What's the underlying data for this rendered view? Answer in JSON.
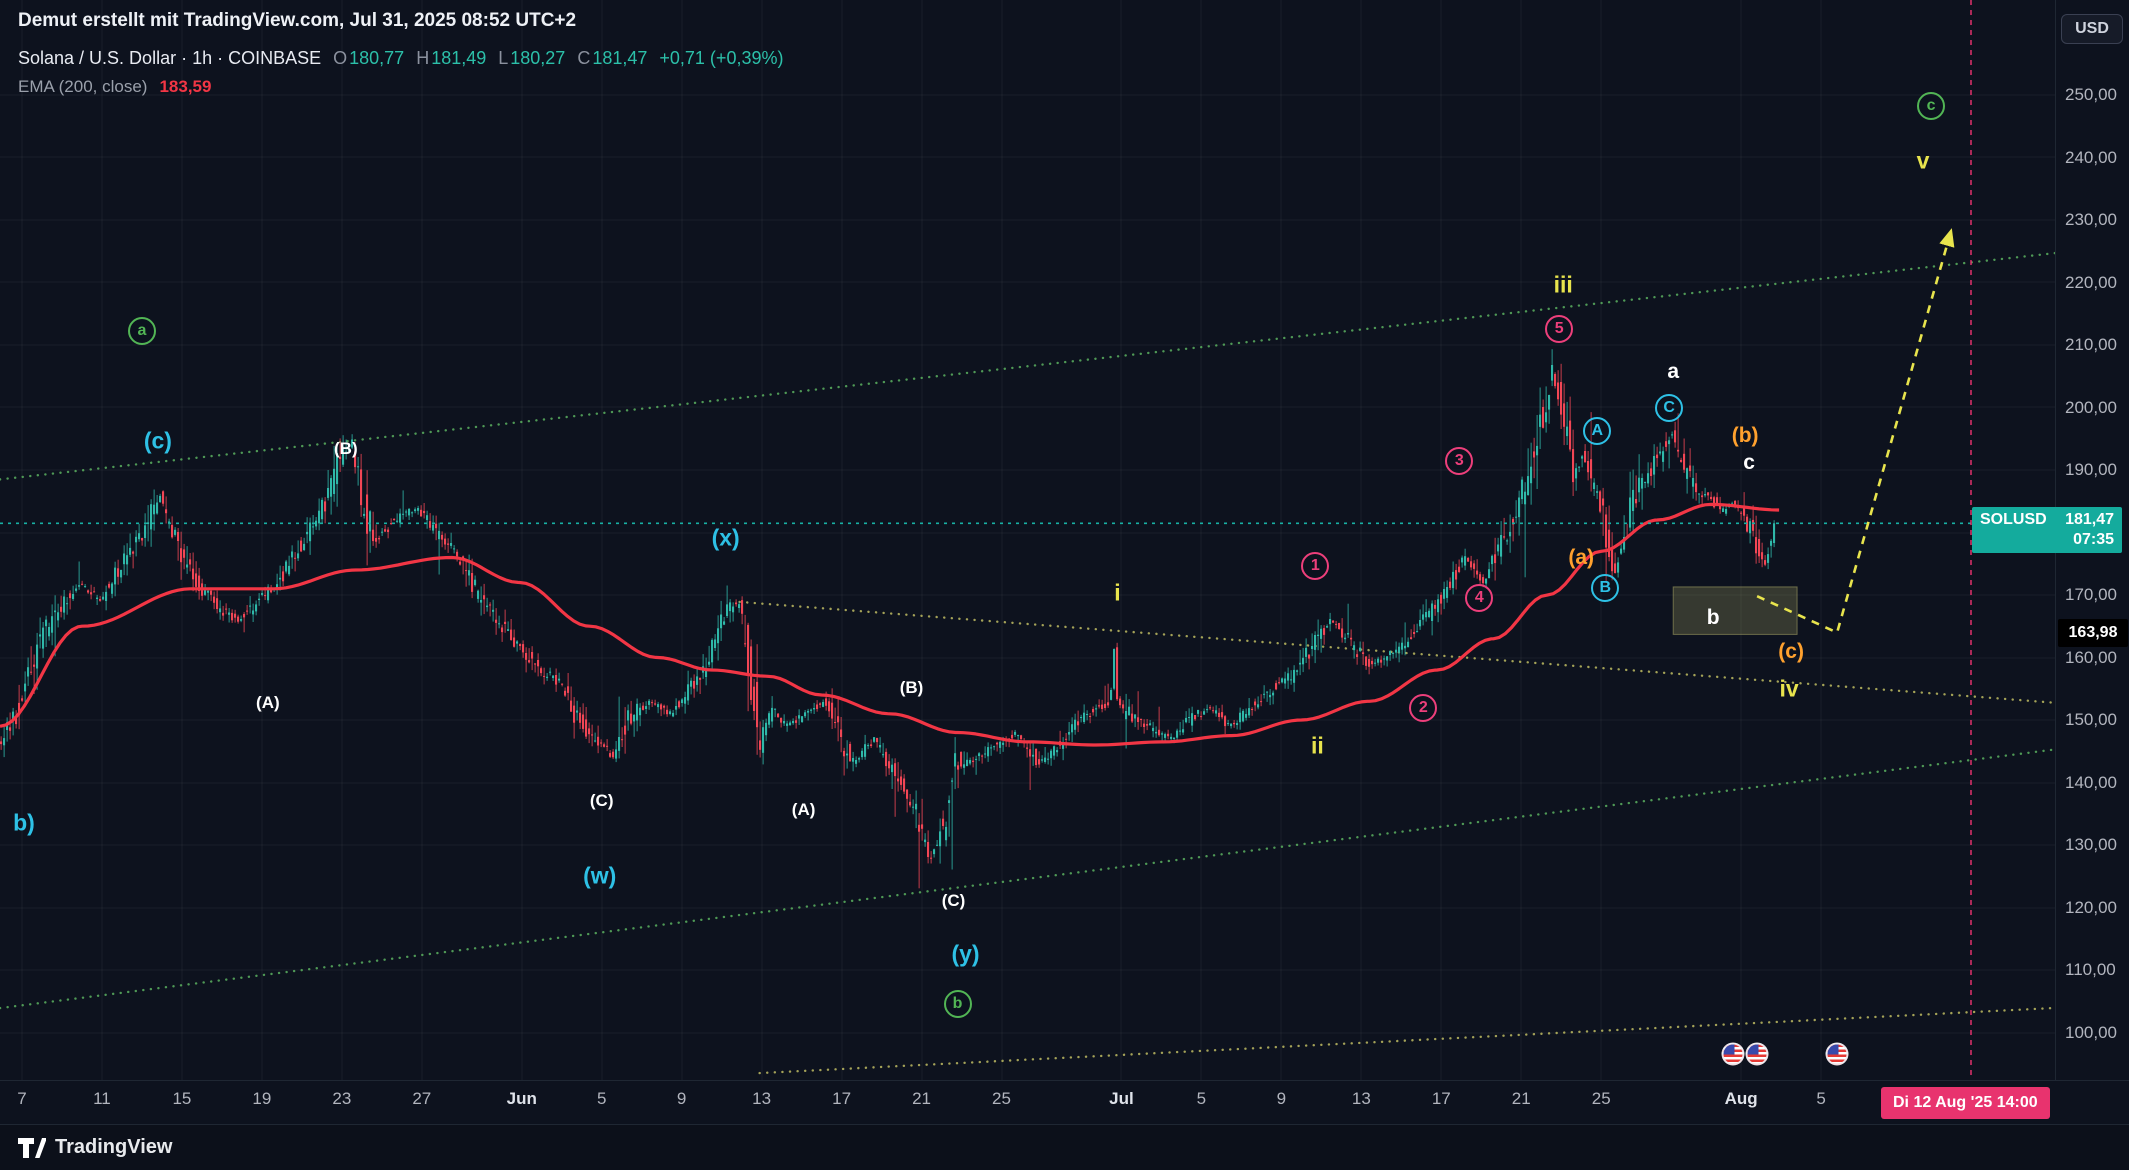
{
  "watermark": "Demut erstellt mit TradingView.com, Jul 31, 2025 08:52 UTC+2",
  "legend": {
    "title": "Solana / U.S. Dollar · 1h · COINBASE",
    "ohlc": [
      {
        "k": "O",
        "v": "180,77"
      },
      {
        "k": "H",
        "v": "181,49"
      },
      {
        "k": "L",
        "v": "180,27"
      },
      {
        "k": "C",
        "v": "181,47"
      }
    ],
    "change": "+0,71 (+0,39%)",
    "ema_label": "EMA (200, close)",
    "ema_value": "183,59"
  },
  "price_scale": {
    "currency_button": "USD",
    "ticks": [
      {
        "label": "250,00",
        "value": 250
      },
      {
        "label": "240,00",
        "value": 240
      },
      {
        "label": "230,00",
        "value": 230
      },
      {
        "label": "220,00",
        "value": 220
      },
      {
        "label": "210,00",
        "value": 210
      },
      {
        "label": "200,00",
        "value": 200
      },
      {
        "label": "190,00",
        "value": 190
      },
      {
        "label": "180,00",
        "value": 180
      },
      {
        "label": "170,00",
        "value": 170
      },
      {
        "label": "160,00",
        "value": 160
      },
      {
        "label": "150,00",
        "value": 150
      },
      {
        "label": "140,00",
        "value": 140
      },
      {
        "label": "130,00",
        "value": 130
      },
      {
        "label": "120,00",
        "value": 120
      },
      {
        "label": "110,00",
        "value": 110
      },
      {
        "label": "100,00",
        "value": 100
      }
    ],
    "price_badge": {
      "symbol": "SOLUSD",
      "price": "181,47",
      "countdown": "07:35"
    },
    "level_badge": {
      "label": "163,98",
      "value": 163.98
    }
  },
  "time_scale": {
    "ticks": [
      {
        "label": "7",
        "day": 0
      },
      {
        "label": "11",
        "day": 4
      },
      {
        "label": "15",
        "day": 8
      },
      {
        "label": "19",
        "day": 12
      },
      {
        "label": "23",
        "day": 16
      },
      {
        "label": "27",
        "day": 20
      },
      {
        "label": "Jun",
        "day": 25,
        "month": true
      },
      {
        "label": "5",
        "day": 29
      },
      {
        "label": "9",
        "day": 33
      },
      {
        "label": "13",
        "day": 37
      },
      {
        "label": "17",
        "day": 41
      },
      {
        "label": "21",
        "day": 45
      },
      {
        "label": "25",
        "day": 49
      },
      {
        "label": "Jul",
        "day": 55,
        "month": true
      },
      {
        "label": "5",
        "day": 59
      },
      {
        "label": "9",
        "day": 63
      },
      {
        "label": "13",
        "day": 67
      },
      {
        "label": "17",
        "day": 71
      },
      {
        "label": "21",
        "day": 75
      },
      {
        "label": "25",
        "day": 79
      },
      {
        "label": "Aug",
        "day": 86,
        "month": true
      },
      {
        "label": "5",
        "day": 90
      }
    ],
    "date_badge": "Di 12 Aug '25 14:00"
  },
  "footer": {
    "brand": "TradingView"
  },
  "icons": {
    "footer_logo": "tradingview-logo",
    "event_flag": "us-flag-icon"
  },
  "colors": {
    "background": "#0d121e",
    "axis_text": "#b2b5be",
    "candle_up": "#2fb8a9",
    "candle_down": "#f24655",
    "ema_line": "#f23645",
    "current_price": "#18b0a4",
    "badge_teal": "#14ab9d",
    "badge_black": "#000000",
    "badge_pink": "#e8336e",
    "cyan": "#2ec1e6",
    "green": "#52b555",
    "pink": "#ed3f7b",
    "orange": "#ffa12e",
    "yellow": "#e8e44d",
    "white": "#ffffff",
    "trend_green": "#56a85c",
    "trend_yellow": "#b5b35e"
  },
  "chart_data": {
    "type": "candlestick",
    "symbol": "SOLUSD",
    "exchange": "COINBASE",
    "interval": "1h",
    "ohlc_current": {
      "open": 180.77,
      "high": 181.49,
      "low": 180.27,
      "close": 181.47,
      "change": 0.71,
      "change_pct": 0.39
    },
    "ema": {
      "period": 200,
      "source": "close",
      "value": 183.59
    },
    "current_price": 181.47,
    "price_axis": {
      "min": 92.4,
      "max": 265.2,
      "tick_step": 10
    },
    "time_axis": {
      "day_min": -1.1,
      "day_max": 101.7
    },
    "future_vline": {
      "day": 97.5
    },
    "price_path": [
      [
        -1.1,
        146
      ],
      [
        0,
        152
      ],
      [
        1.0,
        163
      ],
      [
        2.0,
        168
      ],
      [
        3.0,
        172
      ],
      [
        4.0,
        169
      ],
      [
        5.1,
        175
      ],
      [
        6.1,
        180
      ],
      [
        7.0,
        186
      ],
      [
        7.8,
        178
      ],
      [
        8.8,
        172
      ],
      [
        9.9,
        168
      ],
      [
        10.9,
        166
      ],
      [
        11.9,
        169
      ],
      [
        12.9,
        172
      ],
      [
        14.0,
        178
      ],
      [
        15.0,
        183
      ],
      [
        16.0,
        192
      ],
      [
        16.6,
        194
      ],
      [
        17.1,
        185
      ],
      [
        17.7,
        179
      ],
      [
        18.8,
        182
      ],
      [
        19.8,
        184
      ],
      [
        20.8,
        180
      ],
      [
        21.8,
        177
      ],
      [
        22.9,
        170
      ],
      [
        23.9,
        166
      ],
      [
        24.9,
        162
      ],
      [
        26.0,
        158
      ],
      [
        27.0,
        156
      ],
      [
        27.7,
        151
      ],
      [
        28.7,
        147
      ],
      [
        29.7,
        144
      ],
      [
        30.4,
        150
      ],
      [
        31.4,
        153
      ],
      [
        32.5,
        151
      ],
      [
        33.5,
        155
      ],
      [
        34.5,
        160
      ],
      [
        35.3,
        167
      ],
      [
        35.9,
        169
      ],
      [
        36.4,
        160
      ],
      [
        37.0,
        146
      ],
      [
        37.6,
        152
      ],
      [
        38.3,
        149
      ],
      [
        39.3,
        151
      ],
      [
        40.3,
        153
      ],
      [
        41.0,
        147
      ],
      [
        41.7,
        143
      ],
      [
        42.7,
        147
      ],
      [
        43.8,
        141
      ],
      [
        44.7,
        136
      ],
      [
        45.5,
        128
      ],
      [
        46.2,
        133
      ],
      [
        46.8,
        143
      ],
      [
        47.9,
        144
      ],
      [
        48.9,
        146
      ],
      [
        49.9,
        148
      ],
      [
        51.0,
        143
      ],
      [
        52.0,
        146
      ],
      [
        53.0,
        150
      ],
      [
        54.0,
        152
      ],
      [
        54.55,
        153
      ],
      [
        54.7,
        163
      ],
      [
        54.85,
        153
      ],
      [
        55.4,
        151
      ],
      [
        56.4,
        149
      ],
      [
        57.5,
        147
      ],
      [
        58.5,
        150
      ],
      [
        59.5,
        152
      ],
      [
        60.5,
        149
      ],
      [
        61.6,
        152
      ],
      [
        62.6,
        155
      ],
      [
        63.6,
        157
      ],
      [
        64.7,
        162
      ],
      [
        65.5,
        166
      ],
      [
        66.4,
        163
      ],
      [
        67.4,
        159
      ],
      [
        68.4,
        160
      ],
      [
        69.5,
        163
      ],
      [
        70.5,
        167
      ],
      [
        71.5,
        172
      ],
      [
        72.3,
        176
      ],
      [
        73.2,
        172
      ],
      [
        73.9,
        177
      ],
      [
        74.6,
        182
      ],
      [
        75.3,
        188
      ],
      [
        76.0,
        196
      ],
      [
        76.6,
        206
      ],
      [
        77.1,
        200
      ],
      [
        77.7,
        190
      ],
      [
        78.2,
        193
      ],
      [
        78.7,
        187
      ],
      [
        79.2,
        183
      ],
      [
        79.7,
        173
      ],
      [
        80.3,
        180
      ],
      [
        80.8,
        186
      ],
      [
        81.4,
        189
      ],
      [
        82.1,
        193
      ],
      [
        82.6,
        196
      ],
      [
        83.2,
        190
      ],
      [
        83.8,
        187
      ],
      [
        84.5,
        186
      ],
      [
        85.1,
        183
      ],
      [
        85.6,
        185
      ],
      [
        86.2,
        183
      ],
      [
        86.7,
        179
      ],
      [
        87.3,
        175
      ],
      [
        87.7,
        181.5
      ]
    ],
    "ema_path": [
      [
        -1.1,
        149
      ],
      [
        3.0,
        165
      ],
      [
        8.5,
        171
      ],
      [
        12.6,
        171
      ],
      [
        16.7,
        174
      ],
      [
        21.5,
        176
      ],
      [
        24.9,
        172
      ],
      [
        28.4,
        165
      ],
      [
        31.8,
        160
      ],
      [
        34.5,
        158
      ],
      [
        37.3,
        157
      ],
      [
        40.0,
        154
      ],
      [
        43.4,
        151
      ],
      [
        46.8,
        148
      ],
      [
        50.3,
        146.5
      ],
      [
        53.7,
        146
      ],
      [
        57.1,
        146.5
      ],
      [
        60.5,
        147.5
      ],
      [
        64.0,
        150
      ],
      [
        67.4,
        153
      ],
      [
        70.8,
        158
      ],
      [
        73.6,
        163
      ],
      [
        76.3,
        170
      ],
      [
        79.0,
        177
      ],
      [
        81.8,
        182
      ],
      [
        84.5,
        184.5
      ],
      [
        87.9,
        183.6
      ]
    ],
    "trendlines": [
      {
        "name": "channel-top",
        "color_key": "trend_green",
        "points": [
          [
            -1.1,
            188.5
          ],
          [
            103.7,
            225.4
          ]
        ]
      },
      {
        "name": "channel-bottom",
        "color_key": "trend_green",
        "points": [
          [
            -1.1,
            103.9
          ],
          [
            103.7,
            146.1
          ]
        ]
      },
      {
        "name": "descending-yellow",
        "color_key": "trend_yellow",
        "points": [
          [
            35.9,
            168.9
          ],
          [
            104,
            152.2
          ]
        ]
      },
      {
        "name": "rising-yellow",
        "color_key": "trend_yellow",
        "points": [
          [
            36.9,
            93.5
          ],
          [
            104,
            104.3
          ]
        ]
      }
    ],
    "projection": {
      "color_key": "yellow",
      "points": [
        [
          86.8,
          169.8
        ],
        [
          90.8,
          163.98
        ],
        [
          96.5,
          228.3
        ]
      ]
    },
    "zone_box": {
      "day_start": 82.6,
      "day_end": 88.8,
      "price_top": 171.3,
      "price_bottom": 163.7,
      "fill": "rgba(199,196,116,0.22)",
      "stroke": "rgba(199,196,116,0.45)"
    },
    "event_flags": {
      "days": [
        85.6,
        86.8,
        90.8
      ]
    },
    "annotations": [
      {
        "text": "a",
        "kind": "circle",
        "color": "green",
        "day": 6.0,
        "price": 212.2
      },
      {
        "text": "(c)",
        "kind": "plain",
        "size": "lg",
        "color": "cyan",
        "day": 6.8,
        "price": 194.6
      },
      {
        "text": "b)",
        "kind": "plain",
        "size": "lg",
        "color": "cyan",
        "day": 0.1,
        "price": 133.6
      },
      {
        "text": "(A)",
        "kind": "plain",
        "size": "sm",
        "color": "white",
        "day": 12.3,
        "price": 152.8
      },
      {
        "text": "(B)",
        "kind": "plain",
        "size": "sm",
        "color": "white",
        "day": 16.2,
        "price": 193.3
      },
      {
        "text": "(C)",
        "kind": "plain",
        "size": "sm",
        "color": "white",
        "day": 29.0,
        "price": 137.0
      },
      {
        "text": "(w)",
        "kind": "plain",
        "size": "lg",
        "color": "cyan",
        "day": 28.9,
        "price": 125.0
      },
      {
        "text": "(A)",
        "kind": "plain",
        "size": "sm",
        "color": "white",
        "day": 39.1,
        "price": 135.6
      },
      {
        "text": "(x)",
        "kind": "plain",
        "size": "lg",
        "color": "cyan",
        "day": 35.2,
        "price": 179.1
      },
      {
        "text": "(B)",
        "kind": "plain",
        "size": "sm",
        "color": "white",
        "day": 44.5,
        "price": 155.2
      },
      {
        "text": "(C)",
        "kind": "plain",
        "size": "sm",
        "color": "white",
        "day": 46.6,
        "price": 121.1
      },
      {
        "text": "(y)",
        "kind": "plain",
        "size": "lg",
        "color": "cyan",
        "day": 47.2,
        "price": 112.6
      },
      {
        "text": "b",
        "kind": "circle",
        "color": "green",
        "day": 46.8,
        "price": 104.6
      },
      {
        "text": "i",
        "kind": "plain",
        "size": "lg",
        "color": "yellow",
        "day": 54.8,
        "price": 170.4
      },
      {
        "text": "ii",
        "kind": "plain",
        "size": "lg",
        "color": "yellow",
        "day": 64.8,
        "price": 145.9
      },
      {
        "text": "1",
        "kind": "circle",
        "color": "pink",
        "day": 64.7,
        "price": 174.6
      },
      {
        "text": "2",
        "kind": "circle",
        "color": "pink",
        "day": 70.1,
        "price": 152.0
      },
      {
        "text": "3",
        "kind": "circle",
        "color": "pink",
        "day": 71.9,
        "price": 191.5
      },
      {
        "text": "4",
        "kind": "circle",
        "color": "pink",
        "day": 72.9,
        "price": 169.6
      },
      {
        "text": "5",
        "kind": "circle",
        "color": "pink",
        "day": 76.9,
        "price": 212.6
      },
      {
        "text": "iii",
        "kind": "plain",
        "size": "lg",
        "color": "yellow",
        "day": 77.1,
        "price": 219.6
      },
      {
        "text": "A",
        "kind": "circle",
        "color": "cyan",
        "day": 78.8,
        "price": 196.3
      },
      {
        "text": "B",
        "kind": "circle",
        "color": "cyan",
        "day": 79.2,
        "price": 171.1
      },
      {
        "text": "C",
        "kind": "circle",
        "color": "cyan",
        "day": 82.4,
        "price": 200.0
      },
      {
        "text": "a",
        "kind": "plain",
        "size": "md",
        "color": "white",
        "day": 82.6,
        "price": 205.7
      },
      {
        "text": "(a)",
        "kind": "plain",
        "size": "md",
        "color": "orange",
        "day": 78.0,
        "price": 175.9
      },
      {
        "text": "(b)",
        "kind": "plain",
        "size": "md",
        "color": "orange",
        "day": 86.2,
        "price": 195.4
      },
      {
        "text": "c",
        "kind": "plain",
        "size": "md",
        "color": "white",
        "day": 86.4,
        "price": 191.1
      },
      {
        "text": "b",
        "kind": "plain",
        "size": "md",
        "color": "white",
        "day": 84.6,
        "price": 166.3
      },
      {
        "text": "(c)",
        "kind": "plain",
        "size": "md",
        "color": "orange",
        "day": 88.5,
        "price": 160.9
      },
      {
        "text": "iv",
        "kind": "plain",
        "size": "lg",
        "color": "yellow",
        "day": 88.4,
        "price": 155.0
      },
      {
        "text": "v",
        "kind": "plain",
        "size": "lg",
        "color": "yellow",
        "day": 95.1,
        "price": 239.4
      },
      {
        "text": "c",
        "kind": "circle",
        "color": "green",
        "day": 95.5,
        "price": 248.3
      }
    ]
  }
}
